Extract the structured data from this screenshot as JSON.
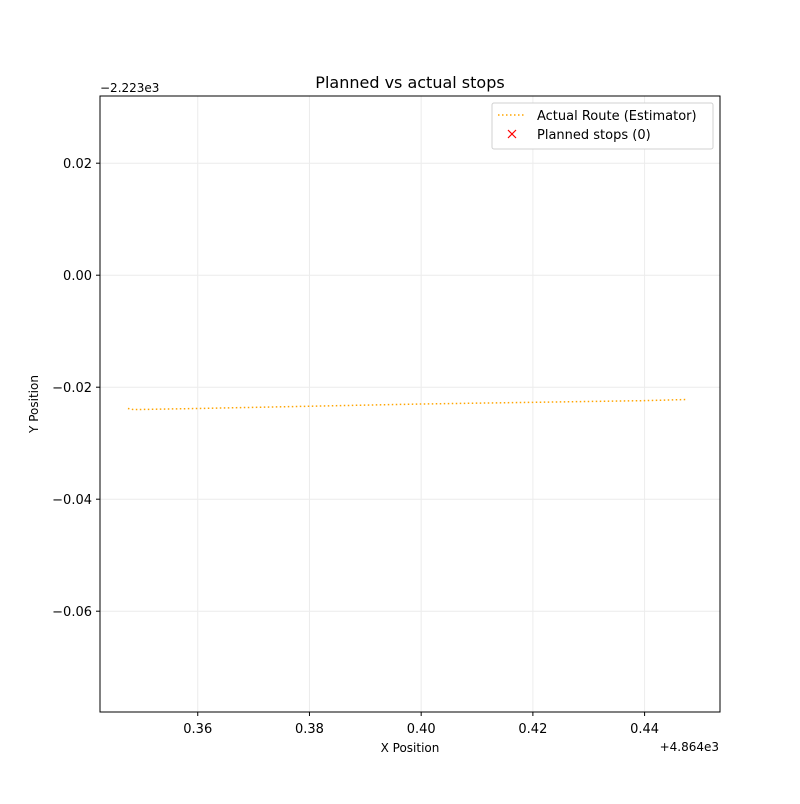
{
  "chart_data": {
    "type": "line",
    "title": "Planned vs actual stops",
    "xlabel": "X Position",
    "ylabel": "Y Position",
    "x_offset_label": "+4.864e3",
    "y_offset_label": "−2.223e3",
    "x_axis": {
      "offset": 4864,
      "lim": [
        0.3425,
        0.4535
      ],
      "ticks": [
        0.36,
        0.38,
        0.4,
        0.42,
        0.44
      ],
      "tick_labels": [
        "0.36",
        "0.38",
        "0.40",
        "0.42",
        "0.44"
      ]
    },
    "y_axis": {
      "offset": -2223,
      "lim": [
        -0.078,
        0.032
      ],
      "ticks": [
        0.02,
        0.0,
        -0.02,
        -0.04,
        -0.06
      ],
      "tick_labels": [
        "0.02",
        "0.00",
        "−0.02",
        "−0.04",
        "−0.06"
      ]
    },
    "grid": true,
    "legend_position": "upper right",
    "series": [
      {
        "name": "Actual Route (Estimator)",
        "kind": "line",
        "linestyle": "dotted",
        "color": "#ffa500",
        "x": [
          0.3475,
          0.3485,
          0.36,
          0.38,
          0.4,
          0.42,
          0.44,
          0.4475
        ],
        "y": [
          -0.0238,
          -0.024,
          -0.0238,
          -0.0234,
          -0.023,
          -0.0227,
          -0.0224,
          -0.0222
        ]
      },
      {
        "name": "Planned stops (0)",
        "kind": "scatter",
        "marker": "x",
        "color": "#ff0000",
        "x": [],
        "y": []
      }
    ]
  }
}
